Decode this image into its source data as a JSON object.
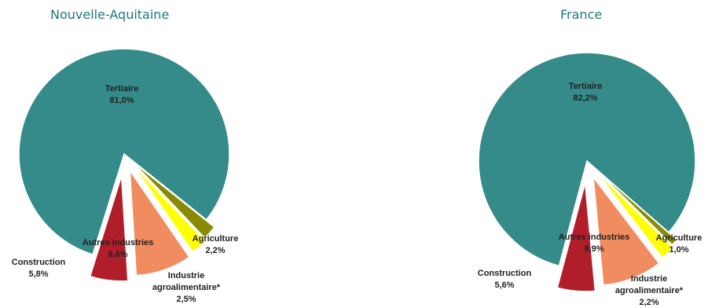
{
  "chart_data": [
    {
      "type": "pie",
      "title": "Nouvelle-Aquitaine",
      "slices": [
        {
          "name": "Tertiaire",
          "value_label": "81,0%",
          "value": 81.0,
          "color": "#358a8a"
        },
        {
          "name": "Agriculture",
          "value_label": "2,2%",
          "value": 2.2,
          "color": "#8a8a00"
        },
        {
          "name": "Industrie agroalimentaire*",
          "value_label": "2,5%",
          "value": 2.5,
          "color": "#ffff00"
        },
        {
          "name": "Autres industries",
          "value_label": "8,6%",
          "value": 8.6,
          "color": "#f08c5f"
        },
        {
          "name": "Construction",
          "value_label": "5,8%",
          "value": 5.8,
          "color": "#b01e2a"
        }
      ]
    },
    {
      "type": "pie",
      "title": "France",
      "slices": [
        {
          "name": "Tertiaire",
          "value_label": "82,2%",
          "value": 82.2,
          "color": "#358a8a"
        },
        {
          "name": "Agriculture",
          "value_label": "1,0%",
          "value": 1.0,
          "color": "#8a8a00"
        },
        {
          "name": "Industrie agroalimentaire*",
          "value_label": "2,2%",
          "value": 2.2,
          "color": "#ffff00"
        },
        {
          "name": "Autres industries",
          "value_label": "8,9%",
          "value": 8.9,
          "color": "#f08c5f"
        },
        {
          "name": "Construction",
          "value_label": "5,6%",
          "value": 5.6,
          "color": "#b01e2a"
        }
      ]
    }
  ]
}
